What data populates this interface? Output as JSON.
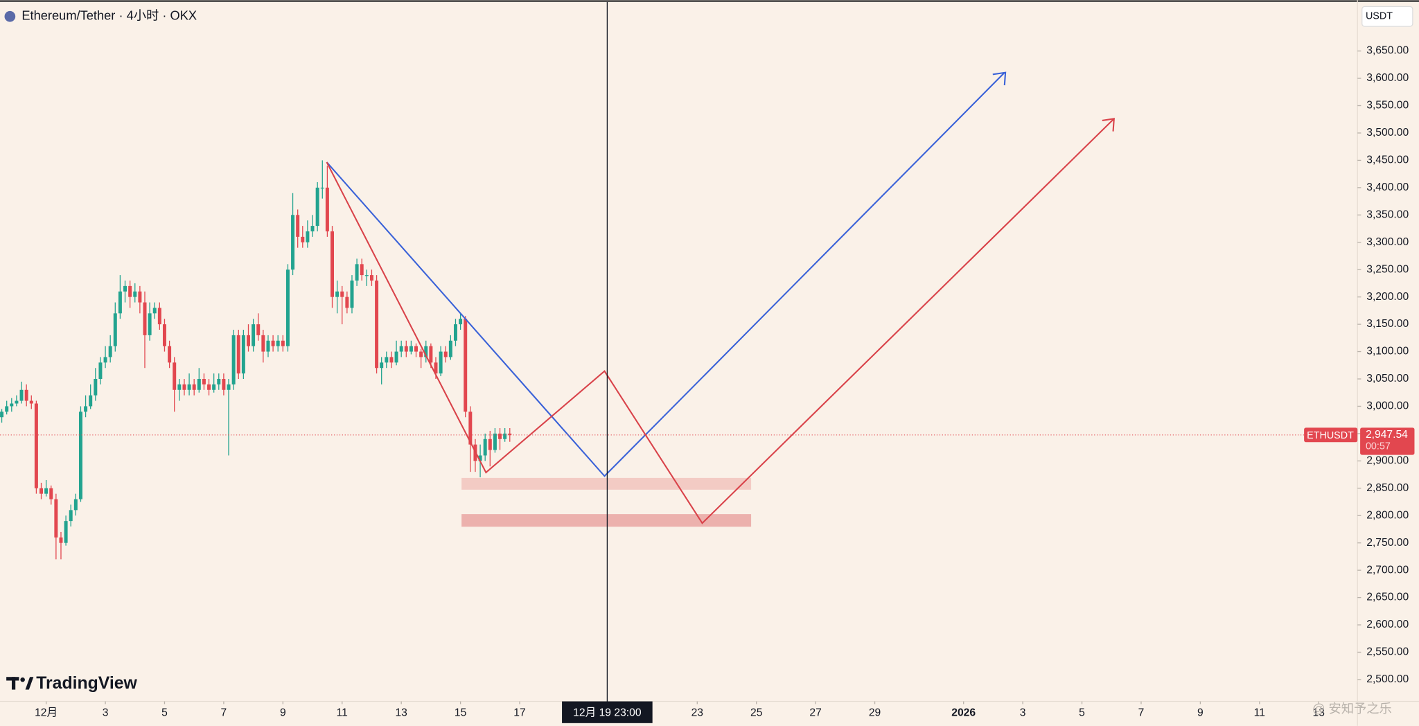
{
  "chart_data": {
    "type": "candlestick",
    "title": "Ethereum/Tether · 4小时 · OKX",
    "currency": "USDT",
    "symbol": "ETHUSDT",
    "countdown": "00:57",
    "brand": "TradingView",
    "watermark": "@ 安知予之乐",
    "up_color": "#22a38f",
    "down_color": "#e2474f",
    "xlim": [
      -1.56,
      44.31
    ],
    "ylim": [
      2460,
      3743
    ],
    "x": [
      -1.5,
      -1.3333,
      -1.1667,
      -1,
      -0.8333,
      -0.6667,
      -0.5,
      -0.3333,
      -0.1667,
      0,
      0.1667,
      0.3333,
      0.5,
      0.6667,
      0.8333,
      1,
      1.1667,
      1.3333,
      1.5,
      1.6667,
      1.8333,
      2,
      2.1667,
      2.3333,
      2.5,
      2.6667,
      2.8333,
      3,
      3.1667,
      3.3333,
      3.5,
      3.6667,
      3.8333,
      4,
      4.1667,
      4.3333,
      4.5,
      4.6667,
      4.8333,
      5,
      5.1667,
      5.3333,
      5.5,
      5.6667,
      5.8333,
      6,
      6.1667,
      6.3333,
      6.5,
      6.6667,
      6.8333,
      7,
      7.1667,
      7.3333,
      7.5,
      7.6667,
      7.8333,
      8,
      8.1667,
      8.3333,
      8.5,
      8.6667,
      8.8333,
      9,
      9.1667,
      9.3333,
      9.5,
      9.6667,
      9.8333,
      10,
      10.1667,
      10.3333,
      10.5,
      10.6667,
      10.8333,
      11,
      11.1667,
      11.3333,
      11.5,
      11.6667,
      11.8333,
      12,
      12.1667,
      12.3333,
      12.5,
      12.6667,
      12.8333,
      13,
      13.1667,
      13.3333,
      13.5,
      13.6667,
      13.8333,
      14,
      14.1667,
      14.3333,
      14.5,
      14.6667,
      14.8333,
      15,
      15.1667,
      15.3333,
      15.5,
      15.6667
    ],
    "ohlc": [
      [
        2980,
        2995,
        2970,
        2990
      ],
      [
        2990,
        3010,
        2985,
        3000
      ],
      [
        3000,
        3015,
        2990,
        3005
      ],
      [
        3005,
        3020,
        3000,
        3010
      ],
      [
        3010,
        3045,
        3005,
        3030
      ],
      [
        3030,
        3040,
        3000,
        3010
      ],
      [
        3010,
        3020,
        2995,
        3005
      ],
      [
        3005,
        3010,
        2840,
        2850
      ],
      [
        2850,
        2860,
        2830,
        2840
      ],
      [
        2840,
        2865,
        2835,
        2850
      ],
      [
        2850,
        2855,
        2820,
        2830
      ],
      [
        2830,
        2840,
        2720,
        2760
      ],
      [
        2760,
        2770,
        2720,
        2750
      ],
      [
        2750,
        2800,
        2745,
        2790
      ],
      [
        2790,
        2820,
        2780,
        2810
      ],
      [
        2810,
        2840,
        2800,
        2830
      ],
      [
        2830,
        3000,
        2825,
        2990
      ],
      [
        2990,
        3020,
        2980,
        3000
      ],
      [
        3000,
        3040,
        2995,
        3020
      ],
      [
        3020,
        3070,
        3010,
        3050
      ],
      [
        3050,
        3090,
        3040,
        3080
      ],
      [
        3080,
        3110,
        3070,
        3090
      ],
      [
        3090,
        3130,
        3080,
        3110
      ],
      [
        3110,
        3190,
        3100,
        3170
      ],
      [
        3170,
        3240,
        3160,
        3210
      ],
      [
        3210,
        3230,
        3190,
        3220
      ],
      [
        3220,
        3230,
        3180,
        3200
      ],
      [
        3200,
        3225,
        3190,
        3210
      ],
      [
        3210,
        3220,
        3170,
        3190
      ],
      [
        3190,
        3210,
        3070,
        3130
      ],
      [
        3130,
        3190,
        3120,
        3170
      ],
      [
        3170,
        3190,
        3160,
        3180
      ],
      [
        3180,
        3190,
        3140,
        3150
      ],
      [
        3150,
        3160,
        3100,
        3110
      ],
      [
        3110,
        3120,
        3070,
        3080
      ],
      [
        3080,
        3090,
        2990,
        3030
      ],
      [
        3030,
        3050,
        3010,
        3040
      ],
      [
        3040,
        3050,
        3020,
        3030
      ],
      [
        3030,
        3060,
        3020,
        3040
      ],
      [
        3040,
        3050,
        3020,
        3030
      ],
      [
        3030,
        3070,
        3025,
        3050
      ],
      [
        3050,
        3060,
        3030,
        3040
      ],
      [
        3040,
        3050,
        3020,
        3030
      ],
      [
        3030,
        3060,
        3025,
        3040
      ],
      [
        3040,
        3060,
        3030,
        3050
      ],
      [
        3050,
        3060,
        3020,
        3030
      ],
      [
        3030,
        3050,
        2910,
        3040
      ],
      [
        3040,
        3140,
        3030,
        3130
      ],
      [
        3130,
        3140,
        3050,
        3060
      ],
      [
        3060,
        3140,
        3050,
        3130
      ],
      [
        3130,
        3150,
        3100,
        3110
      ],
      [
        3110,
        3160,
        3100,
        3150
      ],
      [
        3150,
        3170,
        3120,
        3130
      ],
      [
        3130,
        3140,
        3080,
        3100
      ],
      [
        3100,
        3130,
        3090,
        3120
      ],
      [
        3120,
        3130,
        3100,
        3110
      ],
      [
        3110,
        3130,
        3100,
        3120
      ],
      [
        3120,
        3130,
        3100,
        3110
      ],
      [
        3110,
        3260,
        3100,
        3250
      ],
      [
        3250,
        3390,
        3240,
        3350
      ],
      [
        3350,
        3360,
        3290,
        3310
      ],
      [
        3310,
        3330,
        3290,
        3300
      ],
      [
        3300,
        3340,
        3290,
        3320
      ],
      [
        3320,
        3350,
        3310,
        3330
      ],
      [
        3330,
        3410,
        3320,
        3400
      ],
      [
        3400,
        3450,
        3380,
        3400
      ],
      [
        3400,
        3440,
        3310,
        3320
      ],
      [
        3320,
        3330,
        3180,
        3200
      ],
      [
        3200,
        3230,
        3170,
        3210
      ],
      [
        3210,
        3220,
        3150,
        3200
      ],
      [
        3200,
        3210,
        3170,
        3180
      ],
      [
        3180,
        3240,
        3170,
        3230
      ],
      [
        3230,
        3270,
        3220,
        3260
      ],
      [
        3260,
        3270,
        3230,
        3240
      ],
      [
        3240,
        3250,
        3220,
        3240
      ],
      [
        3240,
        3250,
        3220,
        3230
      ],
      [
        3230,
        3240,
        3060,
        3070
      ],
      [
        3070,
        3090,
        3040,
        3080
      ],
      [
        3080,
        3100,
        3070,
        3090
      ],
      [
        3090,
        3100,
        3070,
        3080
      ],
      [
        3080,
        3120,
        3075,
        3100
      ],
      [
        3100,
        3120,
        3090,
        3110
      ],
      [
        3110,
        3120,
        3090,
        3100
      ],
      [
        3100,
        3120,
        3095,
        3110
      ],
      [
        3110,
        3115,
        3090,
        3100
      ],
      [
        3100,
        3105,
        3070,
        3090
      ],
      [
        3090,
        3120,
        3080,
        3110
      ],
      [
        3110,
        3115,
        3070,
        3080
      ],
      [
        3080,
        3090,
        3050,
        3060
      ],
      [
        3060,
        3110,
        3055,
        3100
      ],
      [
        3100,
        3110,
        3080,
        3090
      ],
      [
        3090,
        3130,
        3085,
        3120
      ],
      [
        3120,
        3160,
        3110,
        3150
      ],
      [
        3150,
        3170,
        3140,
        3160
      ],
      [
        3160,
        3165,
        2980,
        2990
      ],
      [
        2990,
        3000,
        2880,
        2930
      ],
      [
        2930,
        2940,
        2880,
        2900
      ],
      [
        2900,
        2930,
        2870,
        2910
      ],
      [
        2910,
        2950,
        2900,
        2940
      ],
      [
        2940,
        2955,
        2890,
        2920
      ],
      [
        2920,
        2960,
        2915,
        2950
      ],
      [
        2950,
        2960,
        2920,
        2940
      ],
      [
        2940,
        2960,
        2935,
        2950
      ],
      [
        2950,
        2960,
        2935,
        2947.54
      ]
    ],
    "yticks": [
      {
        "value": 2500,
        "label": "2,500.00"
      },
      {
        "value": 2550,
        "label": "2,550.00"
      },
      {
        "value": 2600,
        "label": "2,600.00"
      },
      {
        "value": 2650,
        "label": "2,650.00"
      },
      {
        "value": 2700,
        "label": "2,700.00"
      },
      {
        "value": 2750,
        "label": "2,750.00"
      },
      {
        "value": 2800,
        "label": "2,800.00"
      },
      {
        "value": 2850,
        "label": "2,850.00"
      },
      {
        "value": 2900,
        "label": "2,900.00"
      },
      {
        "value": 2950,
        "label": "2,950.00"
      },
      {
        "value": 3000,
        "label": "3,000.00"
      },
      {
        "value": 3050,
        "label": "3,050.00"
      },
      {
        "value": 3100,
        "label": "3,100.00"
      },
      {
        "value": 3150,
        "label": "3,150.00"
      },
      {
        "value": 3200,
        "label": "3,200.00"
      },
      {
        "value": 3250,
        "label": "3,250.00"
      },
      {
        "value": 3300,
        "label": "3,300.00"
      },
      {
        "value": 3350,
        "label": "3,350.00"
      },
      {
        "value": 3400,
        "label": "3,400.00"
      },
      {
        "value": 3450,
        "label": "3,450.00"
      },
      {
        "value": 3500,
        "label": "3,500.00"
      },
      {
        "value": 3550,
        "label": "3,550.00"
      },
      {
        "value": 3600,
        "label": "3,600.00"
      },
      {
        "value": 3650,
        "label": "3,650.00"
      }
    ],
    "xticks": [
      {
        "value": 0,
        "label": "12月"
      },
      {
        "value": 2,
        "label": "3"
      },
      {
        "value": 4,
        "label": "5"
      },
      {
        "value": 6,
        "label": "7"
      },
      {
        "value": 8,
        "label": "9"
      },
      {
        "value": 10,
        "label": "11"
      },
      {
        "value": 12,
        "label": "13"
      },
      {
        "value": 14,
        "label": "15"
      },
      {
        "value": 16,
        "label": "17"
      },
      {
        "value": 22,
        "label": "23"
      },
      {
        "value": 24,
        "label": "25"
      },
      {
        "value": 26,
        "label": "27"
      },
      {
        "value": 28,
        "label": "29"
      },
      {
        "value": 31,
        "label": "2026"
      },
      {
        "value": 33,
        "label": "3"
      },
      {
        "value": 35,
        "label": "5"
      },
      {
        "value": 37,
        "label": "7"
      },
      {
        "value": 39,
        "label": "9"
      },
      {
        "value": 41,
        "label": "11"
      },
      {
        "value": 43,
        "label": "13"
      }
    ],
    "crosshair": {
      "value": 18.9583,
      "label": "12月 19  23:00"
    },
    "last_price": {
      "value": 2947.54,
      "label": "2,947.54"
    }
  }
}
